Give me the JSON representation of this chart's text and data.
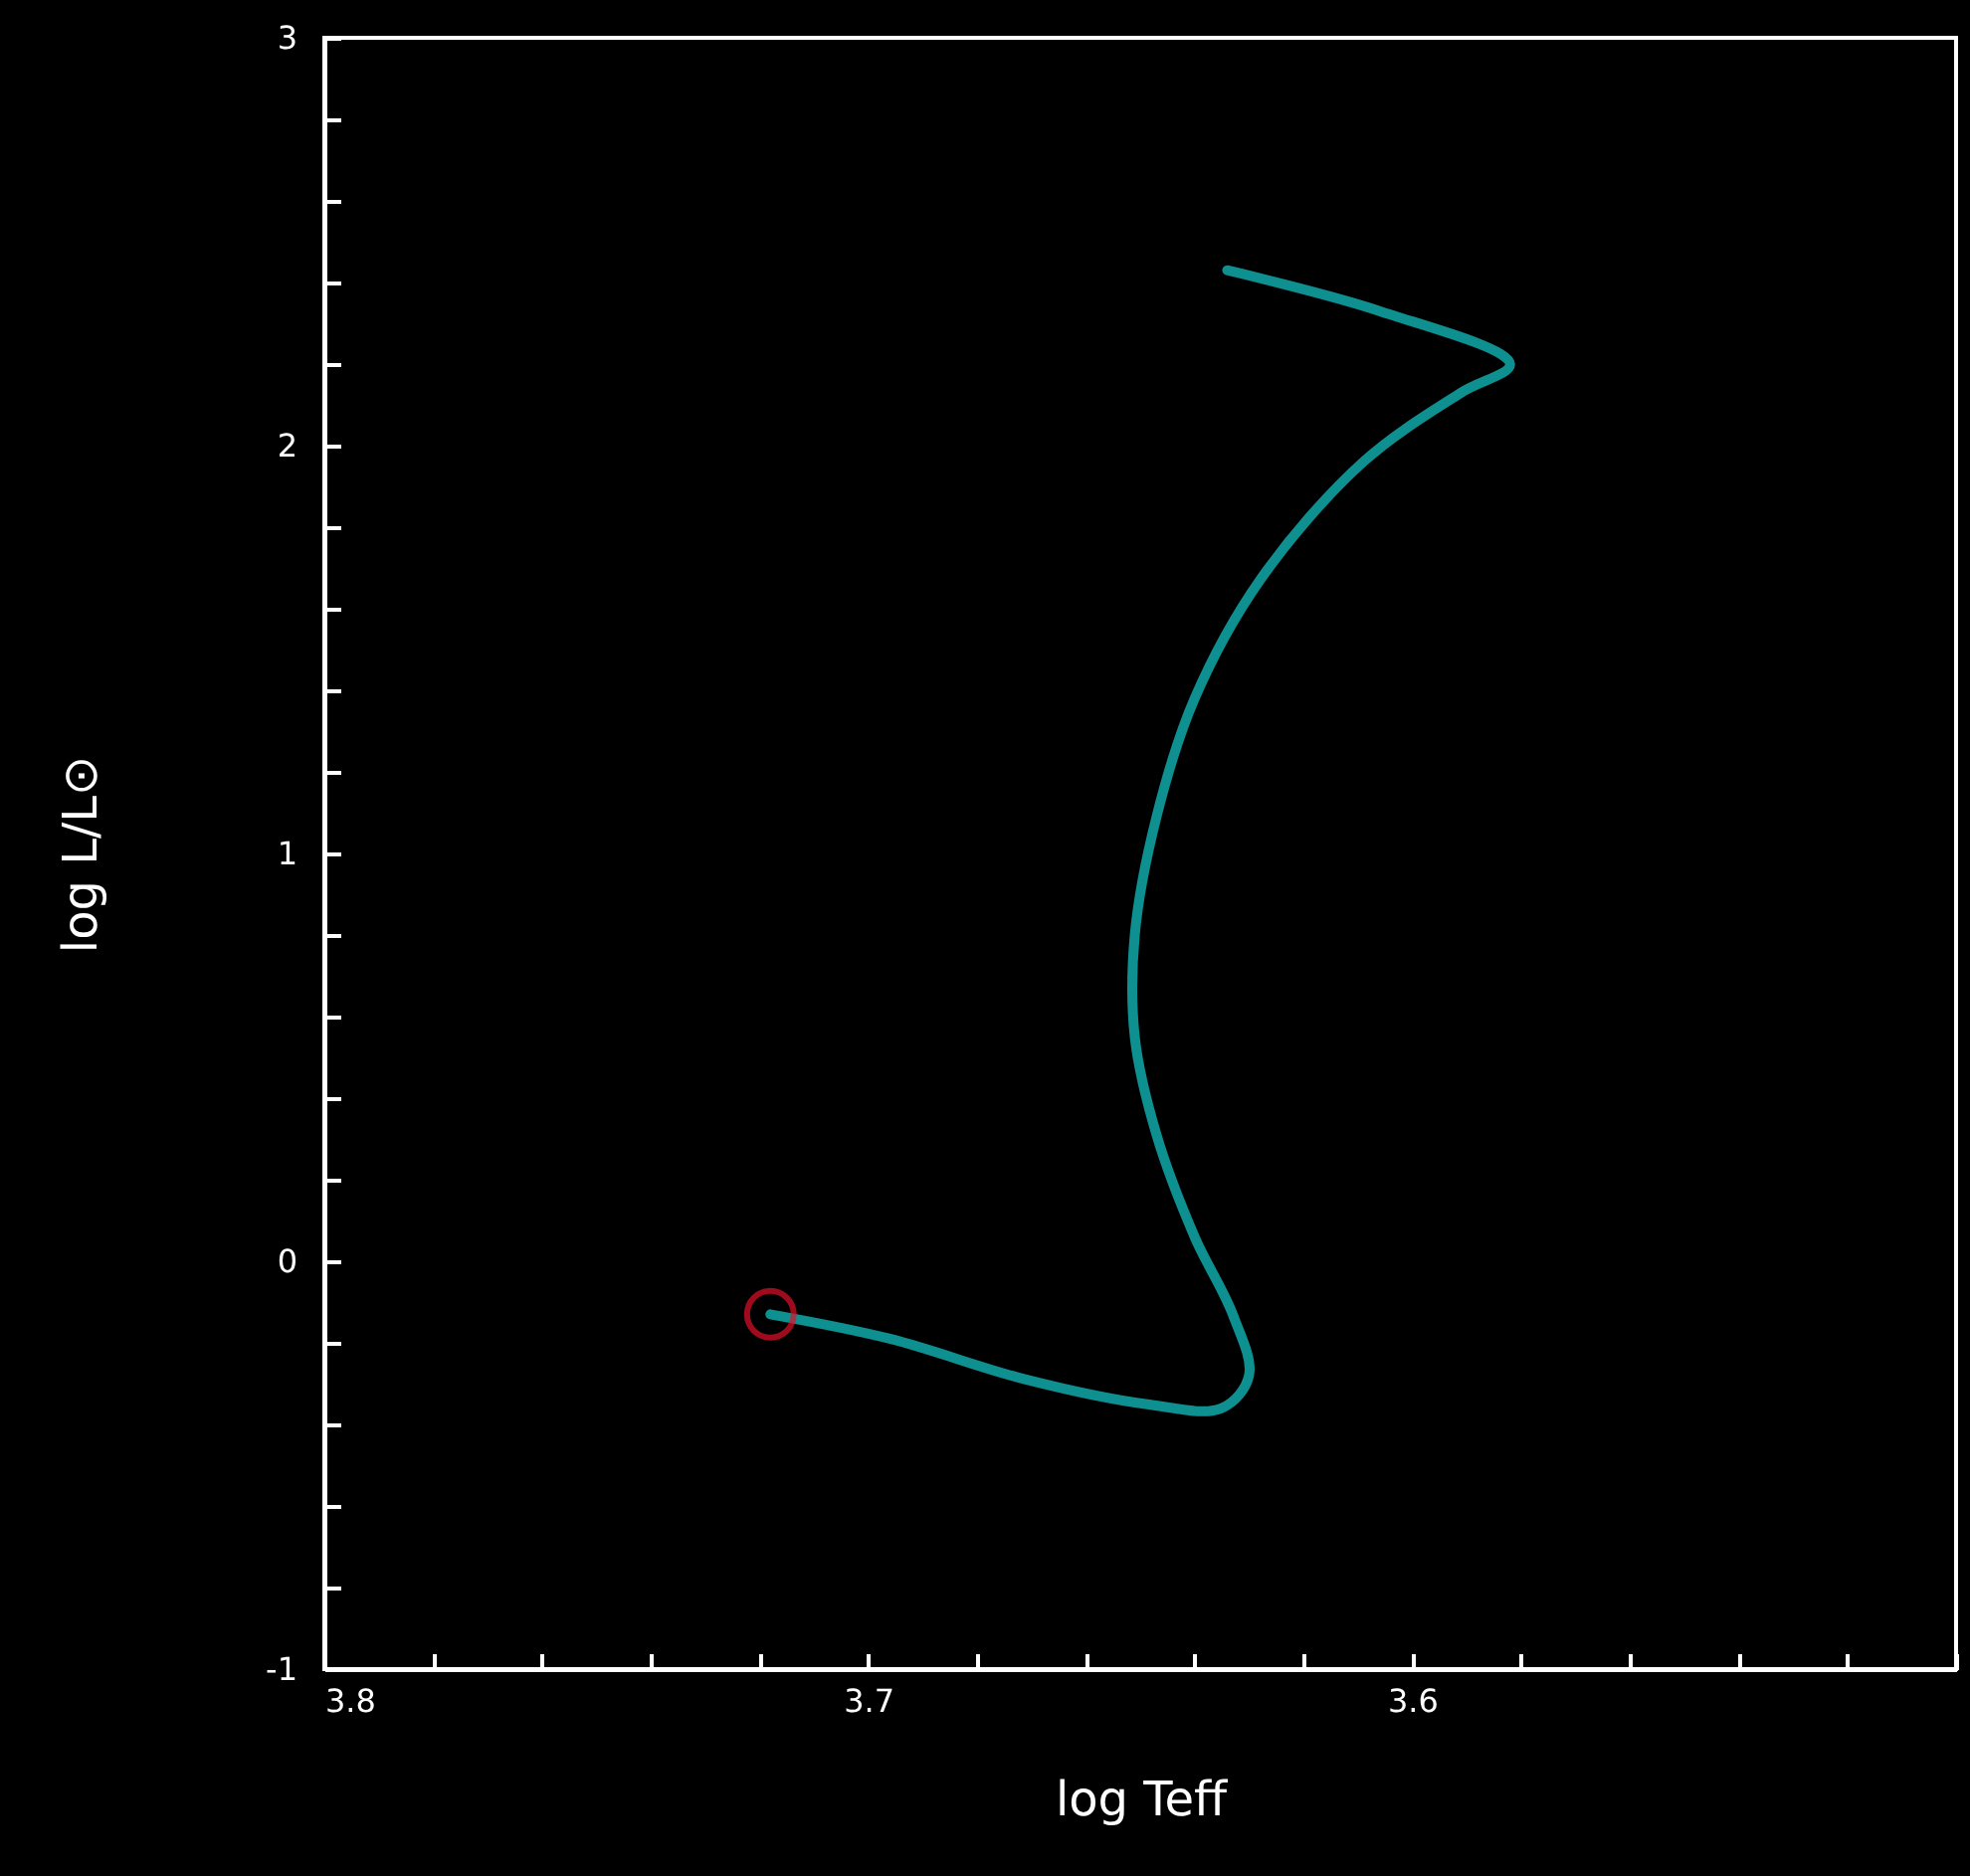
{
  "chart_data": {
    "type": "line",
    "xlabel": "log Teff",
    "ylabel": "log L/L⊙",
    "xlim": [
      3.8,
      3.5
    ],
    "ylim": [
      -1,
      3
    ],
    "xticks": [
      3.8,
      {
        "value": 3.78,
        "label": null
      },
      {
        "value": 3.76,
        "label": null
      },
      {
        "value": 3.74,
        "label": null
      },
      {
        "value": 3.72,
        "label": null
      },
      3.7,
      {
        "value": 3.68,
        "label": null
      },
      {
        "value": 3.66,
        "label": null
      },
      {
        "value": 3.64,
        "label": null
      },
      {
        "value": 3.62,
        "label": null
      },
      3.6,
      {
        "value": 3.58,
        "label": null
      },
      {
        "value": 3.56,
        "label": null
      },
      {
        "value": 3.54,
        "label": null
      },
      {
        "value": 3.52,
        "label": null
      },
      {
        "value": 3.5,
        "label": null
      }
    ],
    "yticks": [
      -1,
      {
        "value": -0.8,
        "label": null
      },
      {
        "value": -0.6,
        "label": null
      },
      {
        "value": -0.4,
        "label": null
      },
      {
        "value": -0.2,
        "label": null
      },
      0,
      {
        "value": 0.2,
        "label": null
      },
      {
        "value": 0.4,
        "label": null
      },
      {
        "value": 0.6,
        "label": null
      },
      {
        "value": 0.8,
        "label": null
      },
      1,
      {
        "value": 1.2,
        "label": null
      },
      {
        "value": 1.4,
        "label": null
      },
      {
        "value": 1.6,
        "label": null
      },
      {
        "value": 1.8,
        "label": null
      },
      2,
      {
        "value": 2.2,
        "label": null
      },
      {
        "value": 2.4,
        "label": null
      },
      {
        "value": 2.6,
        "label": null
      },
      {
        "value": 2.8,
        "label": null
      },
      3
    ],
    "series": [
      {
        "color": "#0e9090",
        "x": [
          3.718,
          3.696,
          3.671,
          3.649,
          3.635,
          3.63,
          3.633,
          3.64,
          3.647,
          3.651,
          3.651,
          3.647,
          3.64,
          3.628,
          3.609,
          3.591,
          3.582,
          3.606,
          3.634
        ],
        "values": [
          -0.13,
          -0.19,
          -0.29,
          -0.35,
          -0.36,
          -0.28,
          -0.13,
          0.06,
          0.31,
          0.55,
          0.8,
          1.09,
          1.38,
          1.67,
          1.96,
          2.13,
          2.2,
          2.33,
          2.43
        ]
      },
      {
        "type": "scatter",
        "color": "#e0102a",
        "marker": "circle",
        "x": [
          3.718
        ],
        "values": [
          -0.13
        ]
      }
    ]
  }
}
